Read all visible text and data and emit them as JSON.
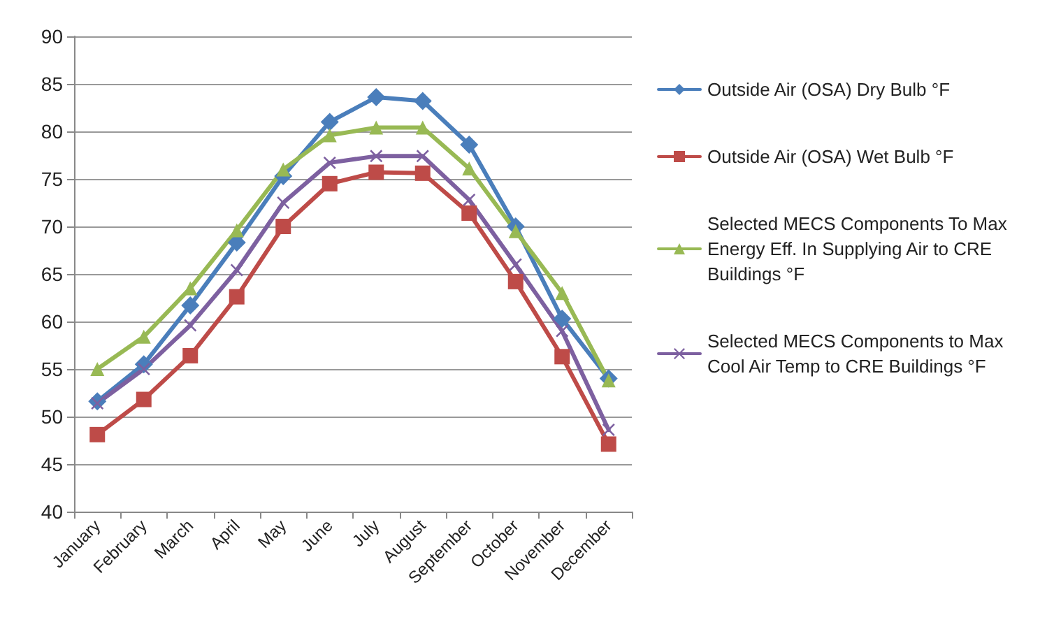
{
  "chart_data": {
    "type": "line",
    "categories": [
      "January",
      "February",
      "March",
      "April",
      "May",
      "June",
      "July",
      "August",
      "September",
      "October",
      "November",
      "December"
    ],
    "series": [
      {
        "name": "Outside Air (OSA) Dry Bulb °F",
        "color": "#4a7ebb",
        "marker": "diamond",
        "values": [
          51.6,
          55.5,
          61.7,
          68.3,
          75.3,
          81.0,
          83.6,
          83.2,
          78.6,
          70.0,
          60.3,
          54.0
        ]
      },
      {
        "name": "Outside Air (OSA) Wet Bulb °F",
        "color": "#be4b48",
        "marker": "square",
        "values": [
          48.1,
          51.8,
          56.4,
          62.6,
          70.0,
          74.5,
          75.7,
          75.6,
          71.4,
          64.2,
          56.3,
          47.1
        ]
      },
      {
        "name": "Selected MECS Components To Max Energy Eff. In Supplying Air to CRE Buildings °F",
        "color": "#98b954",
        "marker": "triangle",
        "values": [
          55.0,
          58.4,
          63.5,
          69.6,
          76.0,
          79.6,
          80.4,
          80.4,
          76.1,
          69.5,
          63.0,
          53.8
        ]
      },
      {
        "name": "Selected MECS Components to Max Cool Air Temp to CRE Buildings °F",
        "color": "#7d60a0",
        "marker": "cross",
        "values": [
          51.4,
          55.0,
          59.6,
          65.4,
          72.5,
          76.7,
          77.4,
          77.4,
          72.8,
          66.0,
          59.0,
          48.6
        ]
      }
    ],
    "ylim": [
      40,
      90
    ],
    "yticks": [
      40,
      45,
      50,
      55,
      60,
      65,
      70,
      75,
      80,
      85,
      90
    ],
    "grid": "y",
    "legend": "right"
  }
}
